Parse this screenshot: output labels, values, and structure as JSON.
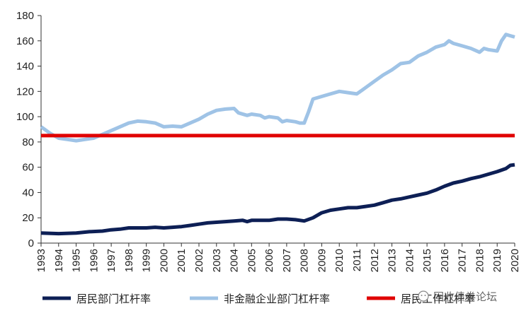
{
  "chart_data": {
    "type": "line",
    "title": "",
    "xlabel": "",
    "ylabel": "",
    "xlim": [
      1993,
      2020
    ],
    "ylim": [
      0,
      180
    ],
    "yticks": [
      0,
      20,
      40,
      60,
      80,
      100,
      120,
      140,
      160,
      180
    ],
    "xtick_labels": [
      "1993",
      "1994",
      "1995",
      "1996",
      "1997",
      "1998",
      "1999",
      "2000",
      "2001",
      "2002",
      "2003",
      "2004",
      "2005",
      "2006",
      "2007",
      "2008",
      "2009",
      "2010",
      "2011",
      "2012",
      "2013",
      "2014",
      "2015",
      "2016",
      "2017",
      "2018",
      "2019",
      "2020"
    ],
    "grid": false,
    "legend_position": "bottom",
    "series": [
      {
        "name": "居民部门杠杆率",
        "color": "#0d1f55",
        "points": [
          [
            1993,
            8
          ],
          [
            1994,
            7.5
          ],
          [
            1995,
            8
          ],
          [
            1995.75,
            9
          ],
          [
            1996.5,
            9.5
          ],
          [
            1997,
            10.5
          ],
          [
            1997.5,
            11
          ],
          [
            1998,
            12
          ],
          [
            1998.5,
            12
          ],
          [
            1999,
            12
          ],
          [
            1999.5,
            12.5
          ],
          [
            2000,
            12
          ],
          [
            2000.5,
            12.5
          ],
          [
            2001,
            13
          ],
          [
            2001.5,
            14
          ],
          [
            2002,
            15
          ],
          [
            2002.5,
            16
          ],
          [
            2003,
            16.5
          ],
          [
            2003.5,
            17
          ],
          [
            2004,
            17.5
          ],
          [
            2004.5,
            18
          ],
          [
            2004.75,
            17
          ],
          [
            2005,
            18
          ],
          [
            2005.5,
            18
          ],
          [
            2006,
            18
          ],
          [
            2006.5,
            19
          ],
          [
            2007,
            19
          ],
          [
            2007.5,
            18.5
          ],
          [
            2008,
            17.5
          ],
          [
            2008.5,
            20
          ],
          [
            2009,
            24
          ],
          [
            2009.5,
            26
          ],
          [
            2010,
            27
          ],
          [
            2010.5,
            28
          ],
          [
            2011,
            28
          ],
          [
            2011.5,
            29
          ],
          [
            2012,
            30
          ],
          [
            2012.5,
            32
          ],
          [
            2013,
            34
          ],
          [
            2013.5,
            35
          ],
          [
            2014,
            36.5
          ],
          [
            2014.5,
            38
          ],
          [
            2015,
            39.5
          ],
          [
            2015.5,
            42
          ],
          [
            2016,
            45
          ],
          [
            2016.5,
            47.5
          ],
          [
            2017,
            49
          ],
          [
            2017.5,
            51
          ],
          [
            2018,
            52.5
          ],
          [
            2018.5,
            54.5
          ],
          [
            2019,
            56.5
          ],
          [
            2019.5,
            59
          ],
          [
            2019.75,
            61.5
          ],
          [
            2020,
            62
          ]
        ]
      },
      {
        "name": "非金融企业部门杠杆率",
        "color": "#9fc3e6",
        "points": [
          [
            1993,
            92
          ],
          [
            1993.5,
            87
          ],
          [
            1994,
            83
          ],
          [
            1994.5,
            82
          ],
          [
            1995,
            81
          ],
          [
            1995.5,
            82
          ],
          [
            1996,
            83
          ],
          [
            1996.5,
            86
          ],
          [
            1997,
            89
          ],
          [
            1997.5,
            92
          ],
          [
            1998,
            95
          ],
          [
            1998.5,
            96.5
          ],
          [
            1999,
            96
          ],
          [
            1999.5,
            95
          ],
          [
            2000,
            92
          ],
          [
            2000.5,
            92.5
          ],
          [
            2001,
            92
          ],
          [
            2001.5,
            95
          ],
          [
            2002,
            98
          ],
          [
            2002.5,
            102
          ],
          [
            2003,
            105
          ],
          [
            2003.5,
            106
          ],
          [
            2004,
            106.5
          ],
          [
            2004.25,
            103
          ],
          [
            2004.75,
            101
          ],
          [
            2005,
            102
          ],
          [
            2005.5,
            101
          ],
          [
            2005.75,
            99
          ],
          [
            2006,
            100
          ],
          [
            2006.5,
            99
          ],
          [
            2006.75,
            96
          ],
          [
            2007,
            97
          ],
          [
            2007.5,
            96
          ],
          [
            2007.75,
            95
          ],
          [
            2008,
            95
          ],
          [
            2008.25,
            104
          ],
          [
            2008.5,
            114
          ],
          [
            2009,
            116
          ],
          [
            2009.5,
            118
          ],
          [
            2010,
            120
          ],
          [
            2010.5,
            119
          ],
          [
            2011,
            118
          ],
          [
            2011.5,
            123
          ],
          [
            2012,
            128
          ],
          [
            2012.5,
            133
          ],
          [
            2013,
            137
          ],
          [
            2013.5,
            142
          ],
          [
            2014,
            143
          ],
          [
            2014.5,
            148
          ],
          [
            2015,
            151
          ],
          [
            2015.5,
            155
          ],
          [
            2016,
            157
          ],
          [
            2016.25,
            160
          ],
          [
            2016.5,
            158
          ],
          [
            2017,
            156
          ],
          [
            2017.5,
            154
          ],
          [
            2018,
            151
          ],
          [
            2018.25,
            154
          ],
          [
            2018.5,
            153
          ],
          [
            2019,
            152
          ],
          [
            2019.25,
            160
          ],
          [
            2019.5,
            165
          ],
          [
            2019.75,
            164
          ],
          [
            2020,
            163
          ]
        ]
      },
      {
        "name": "居民工作杠杆率",
        "color": "#e00000",
        "points": [
          [
            1993,
            85
          ],
          [
            2020,
            85
          ]
        ]
      }
    ]
  },
  "watermark": {
    "text": "固收债券论坛",
    "icon": "wechat-icon"
  }
}
